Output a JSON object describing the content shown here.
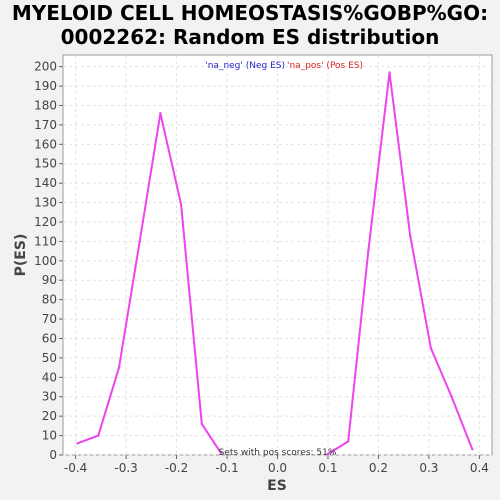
{
  "chart_data": {
    "type": "line",
    "title_line1": "MYELOID CELL HOMEOSTASIS%GOBP%GO:",
    "title_line2": "0002262: Random ES distribution",
    "xlabel": "ES",
    "ylabel": "P(ES)",
    "xlim": [
      -0.425,
      0.425
    ],
    "ylim": [
      0,
      206
    ],
    "xticks": [
      -0.4,
      -0.3,
      -0.2,
      -0.1,
      0.0,
      0.1,
      0.2,
      0.3,
      0.4
    ],
    "xtick_labels": [
      "-0.4",
      "-0.3",
      "-0.2",
      "-0.1",
      "0.0",
      "0.1",
      "0.2",
      "0.3",
      "0.4"
    ],
    "yticks": [
      0,
      10,
      20,
      30,
      40,
      50,
      60,
      70,
      80,
      90,
      100,
      110,
      120,
      130,
      140,
      150,
      160,
      170,
      180,
      190,
      200
    ],
    "grid": true,
    "legend": {
      "placement": "top-center",
      "entries": [
        {
          "label": "'na_neg' (Neg ES)",
          "color": "#2222cc"
        },
        {
          "label": "'na_pos' (Pos ES)",
          "color": "#dd2222"
        }
      ]
    },
    "annotation": "Sets with pos scores: 51%",
    "series": [
      {
        "color": "#ee44ee",
        "x": [
          -0.396,
          -0.355,
          -0.314,
          -0.273,
          -0.232,
          -0.191,
          -0.15,
          -0.112
        ],
        "y": [
          6,
          10,
          45,
          110,
          176,
          129,
          16,
          1
        ]
      },
      {
        "color": "#ee44ee",
        "x": [
          0.1,
          0.14,
          0.18,
          0.222,
          0.263,
          0.304,
          0.345,
          0.386
        ],
        "y": [
          0.5,
          7,
          105,
          197,
          113,
          55,
          30,
          3
        ]
      }
    ]
  }
}
